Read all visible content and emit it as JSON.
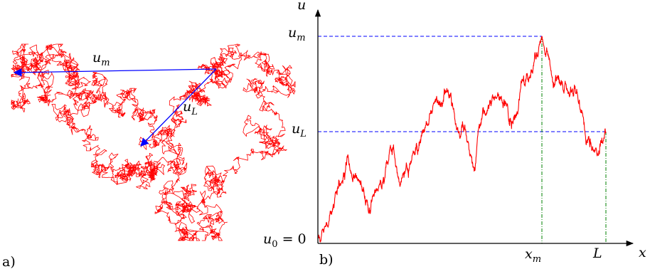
{
  "panel_a": {
    "letter": "a)",
    "vector_um": {
      "symbol": "u",
      "sub": "m"
    },
    "vector_uL": {
      "symbol": "u",
      "sub": "L"
    }
  },
  "panel_b": {
    "letter": "b)",
    "axis_y_label": "u",
    "axis_x_label": "x",
    "tick_um": {
      "symbol": "u",
      "sub": "m"
    },
    "tick_uL": {
      "symbol": "u",
      "sub": "L"
    },
    "tick_u0": {
      "symbol": "u",
      "sub": "0",
      "suffix": " = 0"
    },
    "tick_xm": {
      "symbol": "x",
      "sub": "m"
    },
    "tick_L": "L"
  },
  "colors": {
    "path": "#ff0000",
    "vector": "#0000ff",
    "guide_h": "#0000ff",
    "guide_v": "#008000",
    "axis": "#000000"
  }
}
